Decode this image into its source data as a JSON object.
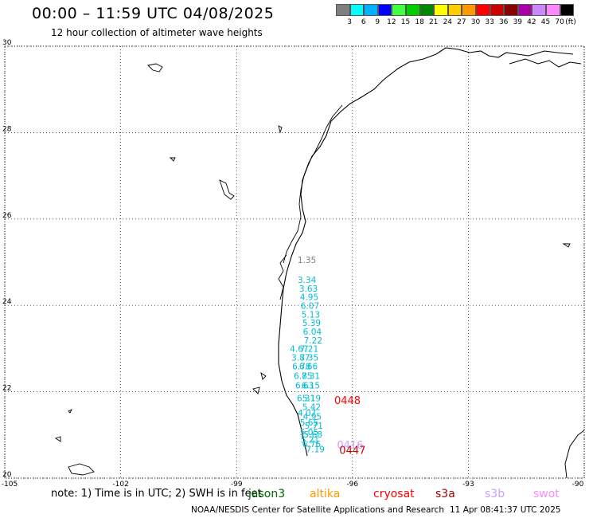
{
  "header": {
    "title": "00:00 – 11:59 UTC 04/08/2025",
    "subtitle": "12 hour collection of altimeter wave heights"
  },
  "color_scale": {
    "unit": "(ft)",
    "colors": [
      "#7f7f7f",
      "#00ffff",
      "#00b0ff",
      "#0000ff",
      "#40ff40",
      "#00cc00",
      "#008800",
      "#ffff00",
      "#ffcc00",
      "#ff9900",
      "#ff0000",
      "#cc0000",
      "#880000",
      "#aa00aa",
      "#cc88ff",
      "#ff88ff",
      "#000000"
    ],
    "labels": [
      "3",
      "6",
      "9",
      "12",
      "15",
      "18",
      "21",
      "24",
      "27",
      "30",
      "33",
      "36",
      "39",
      "42",
      "45",
      "70"
    ]
  },
  "map": {
    "lat_labels": [
      "30",
      "28",
      "26",
      "24",
      "22",
      "20"
    ],
    "lon_labels": [
      "-105",
      "-102",
      "-99",
      "-96",
      "-93",
      "-90"
    ],
    "lat_values": [
      30,
      28,
      26,
      24,
      22,
      20
    ],
    "lon_values": [
      -105,
      -102,
      -99,
      -96,
      -93,
      -90
    ]
  },
  "wave_labels": [
    {
      "text": "1.35",
      "lon": -97.42,
      "lat": 24.98,
      "color": "#808080"
    },
    {
      "text": "3.34",
      "lon": -97.42,
      "lat": 24.52,
      "color": "#00bcd4"
    },
    {
      "text": "3.63",
      "lon": -97.38,
      "lat": 24.32,
      "color": "#00bcd4"
    },
    {
      "text": "4.95",
      "lon": -97.36,
      "lat": 24.12,
      "color": "#00bcd4"
    },
    {
      "text": "6.07",
      "lon": -97.34,
      "lat": 23.92,
      "color": "#00bcd4"
    },
    {
      "text": "5.13",
      "lon": -97.32,
      "lat": 23.72,
      "color": "#00bcd4"
    },
    {
      "text": "5.39",
      "lon": -97.3,
      "lat": 23.52,
      "color": "#00bcd4"
    },
    {
      "text": "6.04",
      "lon": -97.28,
      "lat": 23.32,
      "color": "#00bcd4"
    },
    {
      "text": "7.22",
      "lon": -97.26,
      "lat": 23.12,
      "color": "#00bcd4"
    },
    {
      "text": "4.67",
      "lon": -97.62,
      "lat": 22.92,
      "color": "#00bcd4"
    },
    {
      "text": "7.21",
      "lon": -97.36,
      "lat": 22.92,
      "color": "#00bcd4"
    },
    {
      "text": "3.87",
      "lon": -97.58,
      "lat": 22.72,
      "color": "#00bcd4"
    },
    {
      "text": "7.35",
      "lon": -97.36,
      "lat": 22.72,
      "color": "#00bcd4"
    },
    {
      "text": "6.78",
      "lon": -97.56,
      "lat": 22.52,
      "color": "#00bcd4"
    },
    {
      "text": "6.66",
      "lon": -97.38,
      "lat": 22.52,
      "color": "#00bcd4"
    },
    {
      "text": "6.85",
      "lon": -97.52,
      "lat": 22.3,
      "color": "#00bcd4"
    },
    {
      "text": "7.31",
      "lon": -97.32,
      "lat": 22.3,
      "color": "#00bcd4"
    },
    {
      "text": "6.63",
      "lon": -97.48,
      "lat": 22.08,
      "color": "#00bcd4"
    },
    {
      "text": "6.15",
      "lon": -97.32,
      "lat": 22.08,
      "color": "#00bcd4"
    },
    {
      "text": "6.31",
      "lon": -97.44,
      "lat": 21.78,
      "color": "#00bcd4"
    },
    {
      "text": "5.19",
      "lon": -97.3,
      "lat": 21.78,
      "color": "#00bcd4"
    },
    {
      "text": "5.42",
      "lon": -97.3,
      "lat": 21.58,
      "color": "#00bcd4"
    },
    {
      "text": "4.07",
      "lon": -97.42,
      "lat": 21.44,
      "color": "#00bcd4"
    },
    {
      "text": "4.95",
      "lon": -97.28,
      "lat": 21.36,
      "color": "#00bcd4"
    },
    {
      "text": "5.65",
      "lon": -97.36,
      "lat": 21.22,
      "color": "#00bcd4"
    },
    {
      "text": "5.71",
      "lon": -97.24,
      "lat": 21.14,
      "color": "#00bcd4"
    },
    {
      "text": "5.05",
      "lon": -97.36,
      "lat": 21.0,
      "color": "#00bcd4"
    },
    {
      "text": "5.68",
      "lon": -97.26,
      "lat": 20.94,
      "color": "#00bcd4"
    },
    {
      "text": "5.21",
      "lon": -97.34,
      "lat": 20.82,
      "color": "#00bcd4"
    },
    {
      "text": "6.76",
      "lon": -97.3,
      "lat": 20.72,
      "color": "#00bcd4"
    },
    {
      "text": "7.19",
      "lon": -97.2,
      "lat": 20.6,
      "color": "#00bcd4"
    },
    {
      "text": "0448",
      "lon": -96.47,
      "lat": 21.72,
      "color": "#ff0000"
    },
    {
      "text": "0416",
      "lon": -96.4,
      "lat": 20.68,
      "color": "#c8a0ff"
    },
    {
      "text": "0447",
      "lon": -96.34,
      "lat": 20.56,
      "color": "#cc0000"
    }
  ],
  "footer": {
    "note": "note:  1) Time is in UTC;  2) SWH is in feet",
    "satellites": [
      {
        "name": "jason3",
        "color": "#006600"
      },
      {
        "name": "altika",
        "color": "#ff9900"
      },
      {
        "name": "cryosat",
        "color": "#ff0000"
      },
      {
        "name": "s3a",
        "color": "#990000"
      },
      {
        "name": "s3b",
        "color": "#c8a0ff"
      },
      {
        "name": "swot",
        "color": "#ff88ff"
      }
    ],
    "credit": "NOAA/NESDIS Center for Satellite Applications and Research",
    "timestamp": "11 Apr 08:41:37 UTC 2025"
  }
}
